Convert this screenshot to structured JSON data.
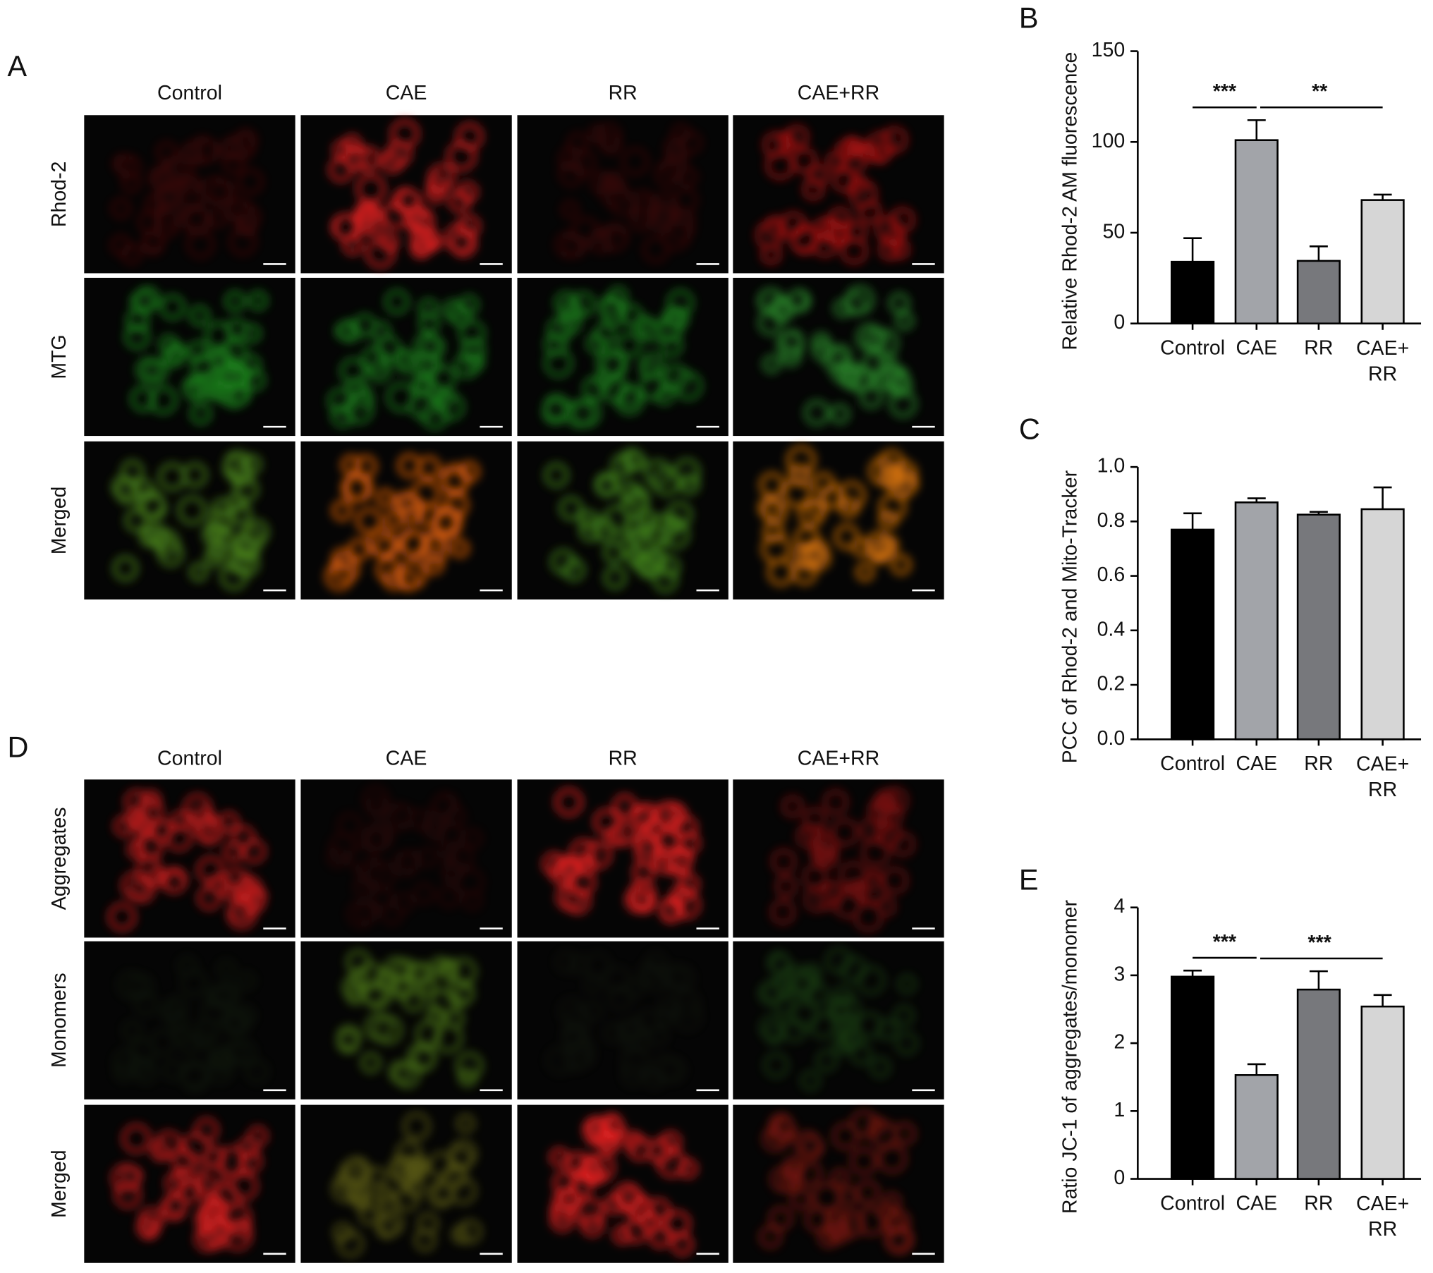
{
  "panels": [
    {
      "letter": "A",
      "columns": [
        "Control",
        "CAE",
        "RR",
        "CAE+RR"
      ],
      "rows": [
        "Rhod-2",
        "MTG",
        "Merged"
      ]
    },
    {
      "letter": "D",
      "columns": [
        "Control",
        "CAE",
        "RR",
        "CAE+RR"
      ],
      "rows": [
        "Aggregates",
        "Monomers",
        "Merged"
      ]
    }
  ],
  "chart_data": [
    {
      "type": "bar",
      "letter": "B",
      "y_label": "Relative Rhod-2 AM fluorescence",
      "categories": [
        "Control",
        "CAE",
        "RR",
        "CAE+\nRR"
      ],
      "values": [
        34,
        101,
        34.5,
        68
      ],
      "errors": [
        13,
        11,
        8,
        3
      ],
      "colors": [
        "#000000",
        "#a2a4a9",
        "#77787c",
        "#d6d6d6"
      ],
      "ylim": [
        0,
        150
      ],
      "yticks": [
        0,
        50,
        100,
        150
      ],
      "annotations": [
        {
          "text": "***",
          "between": [
            "Control",
            "CAE"
          ]
        },
        {
          "text": "**",
          "between": [
            "CAE",
            "CAE+\nRR"
          ]
        }
      ]
    },
    {
      "type": "bar",
      "letter": "C",
      "y_label": "PCC of Rhod-2 and Mito-Tracker",
      "categories": [
        "Control",
        "CAE",
        "RR",
        "CAE+\nRR"
      ],
      "values": [
        0.77,
        0.87,
        0.825,
        0.845
      ],
      "errors": [
        0.06,
        0.015,
        0.01,
        0.08
      ],
      "colors": [
        "#000000",
        "#a2a4a9",
        "#77787c",
        "#d6d6d6"
      ],
      "ylim": [
        0,
        1
      ],
      "yticks": [
        {
          "value": 0,
          "label": "0.0"
        },
        0.2,
        0.4,
        0.6,
        0.8,
        {
          "value": 1,
          "label": "1.0"
        }
      ]
    },
    {
      "type": "bar",
      "letter": "E",
      "y_label": "Ratio JC-1 of aggregates/monomer",
      "categories": [
        "Control",
        "CAE",
        "RR",
        "CAE+\nRR"
      ],
      "values": [
        2.98,
        1.53,
        2.79,
        2.54
      ],
      "errors": [
        0.09,
        0.16,
        0.27,
        0.17
      ],
      "colors": [
        "#000000",
        "#a2a4a9",
        "#77787c",
        "#d6d6d6"
      ],
      "ylim": [
        0,
        4
      ],
      "yticks": [
        0,
        1,
        2,
        3,
        4
      ],
      "annotations": [
        {
          "text": "***",
          "between": [
            "Control",
            "CAE"
          ]
        },
        {
          "text": "***",
          "between": [
            "CAE",
            "CAE+\nRR"
          ]
        }
      ]
    }
  ]
}
